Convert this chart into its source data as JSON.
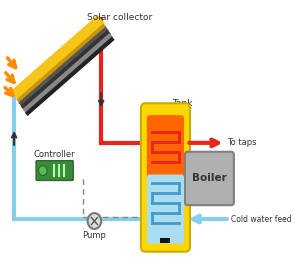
{
  "bg_color": "#ffffff",
  "solar_collector_label": "Solar collector",
  "controller_label": "Controller",
  "pump_label": "Pump",
  "tank_label": "Tank",
  "boiler_label": "Boiler",
  "to_taps_label": "To taps",
  "cold_water_label": "Cold water feed",
  "colors": {
    "red": "#e8241c",
    "blue": "#87ceeb",
    "blue_dark": "#4499cc",
    "orange": "#ff8c00",
    "yellow": "#ffd700",
    "tank_orange": "#ff6600",
    "tank_blue": "#aaddee",
    "green": "#3a8a3a",
    "gray": "#b0b0b0",
    "dark": "#333333",
    "dashed": "#888888"
  }
}
